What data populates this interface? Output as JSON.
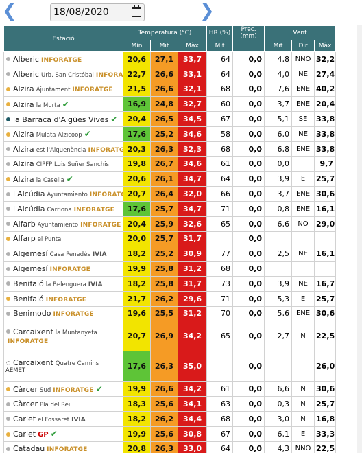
{
  "date": {
    "value": "18/08/2020",
    "prev_icon": "chevron-left-icon",
    "next_icon": "chevron-right-icon",
    "calendar_icon": "calendar-icon"
  },
  "headers": {
    "station": "Estació",
    "temp": "Temperatura (°C)",
    "hr": "HR (%)",
    "prec": "Prec. (mm)",
    "wind": "Vent",
    "min": "Mín",
    "mit": "Mit",
    "max": "Màx",
    "hr_mit": "Mit",
    "w_mit": "Mit",
    "w_dir": "Dir",
    "w_max": "Màx"
  },
  "colors": {
    "header": "#3a7178",
    "t_green": "#5ec437",
    "t_yellow": "#f2e400",
    "t_orange": "#f59b25",
    "t_red": "#d91a1a"
  },
  "rows": [
    {
      "name": "Alberic",
      "sub": "",
      "logo": "INFORATGE",
      "check": false,
      "dot": "#b0b0b0",
      "min": "20,6",
      "mit": "27,1",
      "max": "33,7",
      "hr": "64",
      "prec": "0,0",
      "wmit": "4,8",
      "wdir": "NNO",
      "wmax": "32,2"
    },
    {
      "name": "Alberic",
      "sub": "Urb. San Cristóbal",
      "logo": "INFORATGE",
      "check": false,
      "dot": "#b0b0b0",
      "min": "22,7",
      "mit": "26,6",
      "max": "33,1",
      "hr": "64",
      "prec": "0,0",
      "wmit": "4,0",
      "wdir": "NE",
      "wmax": "27,4"
    },
    {
      "name": "Alzira",
      "sub": "Ajuntament",
      "logo": "INFORATGE",
      "check": false,
      "dot": "#e8b040",
      "min": "21,5",
      "mit": "26,6",
      "max": "32,1",
      "hr": "68",
      "prec": "0,0",
      "wmit": "7,6",
      "wdir": "ENE",
      "wmax": "40,2"
    },
    {
      "name": "Alzira",
      "sub": "la Murta",
      "logo": "",
      "check": true,
      "dot": "#e8b040",
      "min": "16,9",
      "mit": "24,8",
      "max": "32,7",
      "hr": "60",
      "prec": "0,0",
      "wmit": "3,7",
      "wdir": "ENE",
      "wmax": "20,4"
    },
    {
      "name": "la Barraca d'Aigües Vives",
      "sub": "",
      "logo": "",
      "check": true,
      "dot": "#1f5a66",
      "min": "20,4",
      "mit": "26,5",
      "max": "34,5",
      "hr": "67",
      "prec": "0,0",
      "wmit": "5,1",
      "wdir": "SE",
      "wmax": "33,8"
    },
    {
      "name": "Alzira",
      "sub": "Mulata Alzicoop",
      "logo": "",
      "check": true,
      "dot": "#e8b040",
      "min": "17,6",
      "mit": "25,2",
      "max": "34,6",
      "hr": "58",
      "prec": "0,0",
      "wmit": "6,0",
      "wdir": "NE",
      "wmax": "33,8"
    },
    {
      "name": "Alzira",
      "sub": "est l'Alquenència",
      "logo": "INFORATGE",
      "check": false,
      "dot": "#b0b0b0",
      "min": "20,3",
      "mit": "26,3",
      "max": "32,3",
      "hr": "68",
      "prec": "0,0",
      "wmit": "6,8",
      "wdir": "ENE",
      "wmax": "33,8"
    },
    {
      "name": "Alzira",
      "sub": "CIPFP Luis Suñer Sanchis",
      "logo": "",
      "check": false,
      "dot": "#b0b0b0",
      "min": "19,8",
      "mit": "26,7",
      "max": "34,6",
      "hr": "61",
      "prec": "0,0",
      "wmit": "0,0",
      "wdir": "",
      "wmax": "9,7"
    },
    {
      "name": "Alzira",
      "sub": "la Casella",
      "logo": "",
      "check": true,
      "dot": "#e8b040",
      "min": "20,6",
      "mit": "26,1",
      "max": "34,7",
      "hr": "64",
      "prec": "0,0",
      "wmit": "3,9",
      "wdir": "E",
      "wmax": "25,7"
    },
    {
      "name": "l'Alcúdia",
      "sub": "Ayuntamiento",
      "logo": "INFORATGE",
      "check": false,
      "dot": "#b0b0b0",
      "min": "20,7",
      "mit": "26,4",
      "max": "32,0",
      "hr": "66",
      "prec": "0,0",
      "wmit": "3,7",
      "wdir": "ENE",
      "wmax": "30,6"
    },
    {
      "name": "l'Alcúdia",
      "sub": "Carriona",
      "logo": "INFORATGE",
      "check": false,
      "dot": "#b0b0b0",
      "min": "17,6",
      "mit": "25,7",
      "max": "34,7",
      "hr": "71",
      "prec": "0,0",
      "wmit": "0,8",
      "wdir": "ENE",
      "wmax": "16,1"
    },
    {
      "name": "Alfarb",
      "sub": "Ayuntamiento",
      "logo": "INFORATGE",
      "check": false,
      "dot": "#b0b0b0",
      "min": "20,4",
      "mit": "25,9",
      "max": "32,6",
      "hr": "65",
      "prec": "0,0",
      "wmit": "6,6",
      "wdir": "NO",
      "wmax": "29,0"
    },
    {
      "name": "Alfarp",
      "sub": "el Puntal",
      "logo": "",
      "check": false,
      "dot": "#e8b040",
      "min": "20,0",
      "mit": "25,7",
      "max": "31,7",
      "hr": "",
      "prec": "0,0",
      "wmit": "",
      "wdir": "",
      "wmax": ""
    },
    {
      "name": "Algemesí",
      "sub": "Casa Penedés",
      "logo": "IVIA",
      "check": false,
      "dot": "#b0b0b0",
      "min": "18,2",
      "mit": "25,2",
      "max": "30,9",
      "hr": "77",
      "prec": "0,0",
      "wmit": "2,5",
      "wdir": "NE",
      "wmax": "16,1"
    },
    {
      "name": "Algemesí",
      "sub": "",
      "logo": "INFORATGE",
      "check": false,
      "dot": "#b0b0b0",
      "min": "19,9",
      "mit": "25,8",
      "max": "31,2",
      "hr": "68",
      "prec": "0,0",
      "wmit": "",
      "wdir": "",
      "wmax": ""
    },
    {
      "name": "Benifaió",
      "sub": "la Belenguera",
      "logo": "IVIA",
      "check": false,
      "dot": "#b0b0b0",
      "min": "18,2",
      "mit": "25,8",
      "max": "31,7",
      "hr": "73",
      "prec": "0,0",
      "wmit": "3,9",
      "wdir": "NE",
      "wmax": "16,7"
    },
    {
      "name": "Benifaió",
      "sub": "",
      "logo": "INFORATGE",
      "check": false,
      "dot": "#e8b040",
      "min": "21,7",
      "mit": "26,2",
      "max": "29,6",
      "hr": "71",
      "prec": "0,0",
      "wmit": "5,3",
      "wdir": "E",
      "wmax": "25,7"
    },
    {
      "name": "Benimodo",
      "sub": "",
      "logo": "INFORATGE",
      "check": false,
      "dot": "#b0b0b0",
      "min": "19,6",
      "mit": "25,5",
      "max": "31,2",
      "hr": "70",
      "prec": "0,0",
      "wmit": "5,6",
      "wdir": "ENE",
      "wmax": "30,6"
    },
    {
      "name": "Carcaixent",
      "sub": "la Muntanyeta",
      "logo": "INFORATGE",
      "check": false,
      "dot": "#b0b0b0",
      "min": "20,7",
      "mit": "26,9",
      "max": "34,2",
      "hr": "65",
      "prec": "0,0",
      "wmit": "2,7",
      "wdir": "N",
      "wmax": "22,5",
      "tall": true
    },
    {
      "name": "Carcaixent",
      "sub": "Quatre Camins",
      "logo": "AEMET",
      "check": false,
      "dot": "#ffffff",
      "min": "17,6",
      "mit": "26,3",
      "max": "35,0",
      "hr": "",
      "prec": "0,0",
      "wmit": "",
      "wdir": "",
      "wmax": "26,0",
      "tall": true
    },
    {
      "name": "Càrcer",
      "sub": "Sud",
      "logo": "INFORATGE",
      "check": true,
      "dot": "#e8b040",
      "min": "19,9",
      "mit": "26,6",
      "max": "34,2",
      "hr": "61",
      "prec": "0,0",
      "wmit": "6,6",
      "wdir": "N",
      "wmax": "30,6"
    },
    {
      "name": "Càrcer",
      "sub": "Pla del Rei",
      "logo": "",
      "check": false,
      "dot": "#b0b0b0",
      "min": "18,3",
      "mit": "25,6",
      "max": "34,1",
      "hr": "63",
      "prec": "0,0",
      "wmit": "0,3",
      "wdir": "N",
      "wmax": "25,7"
    },
    {
      "name": "Carlet",
      "sub": "el Fossaret",
      "logo": "IVIA",
      "check": false,
      "dot": "#b0b0b0",
      "min": "18,2",
      "mit": "26,2",
      "max": "34,4",
      "hr": "68",
      "prec": "0,0",
      "wmit": "3,0",
      "wdir": "N",
      "wmax": "16,8"
    },
    {
      "name": "Carlet",
      "sub": "",
      "logo": "GP",
      "check": true,
      "dot": "#e8b040",
      "min": "19,9",
      "mit": "25,6",
      "max": "30,8",
      "hr": "67",
      "prec": "0,0",
      "wmit": "6,1",
      "wdir": "E",
      "wmax": "33,3"
    },
    {
      "name": "Catadau",
      "sub": "",
      "logo": "INFORATGE",
      "check": false,
      "dot": "#b0b0b0",
      "min": "20,8",
      "mit": "26,3",
      "max": "33,0",
      "hr": "64",
      "prec": "0,0",
      "wmit": "4,3",
      "wdir": "NNO",
      "wmax": "22,5"
    }
  ]
}
